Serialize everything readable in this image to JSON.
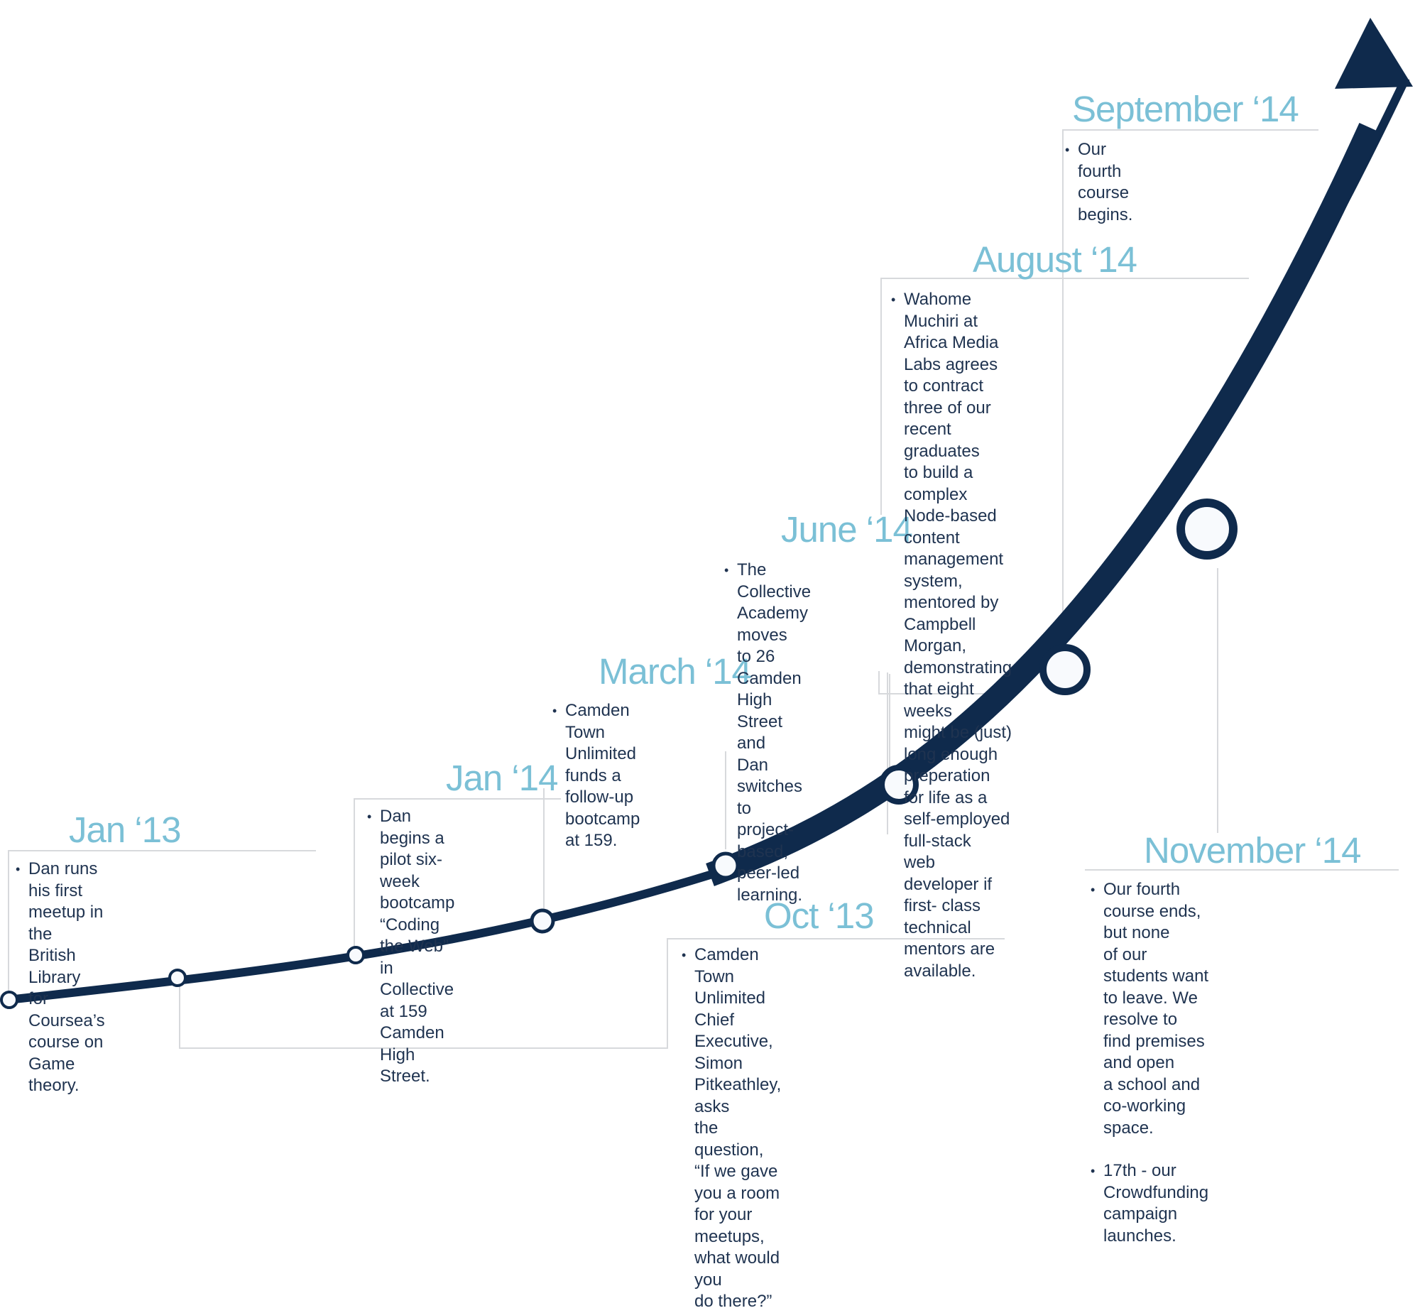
{
  "colors": {
    "curve": "#0f2a4c",
    "title": "#7bc0d6",
    "text": "#1f3350",
    "connector": "#d7d9dc"
  },
  "events": [
    {
      "title": "Jan ‘13",
      "items": [
        "Dan runs his first meetup in the\nBritish Library for Coursea’s\ncourse on Game theory."
      ]
    },
    {
      "title": "Oct ‘13",
      "items": [
        "Camden Town Unlimited Chief\nExecutive, Simon Pitkeathley, asks\nthe question, “If we gave you a room\nfor your meetups, what would you\ndo there?”"
      ]
    },
    {
      "title": "Jan ‘14",
      "items": [
        "Dan begins a pilot six-week\nbootcamp “Coding the Web”\nin Collective at 159 Camden\nHigh Street."
      ]
    },
    {
      "title": "March ‘14",
      "items": [
        "Camden Town Unlimited\nfunds a follow-up bootcamp\nat 159."
      ]
    },
    {
      "title": "June ‘14",
      "items": [
        "The Collective Academy moves\nto 26 Camden High Street and\nDan switches to project-based,\npeer-led learning."
      ]
    },
    {
      "title": "August ‘14",
      "items": [
        "Wahome Muchiri at Africa Media Labs agrees\nto contract three of our recent graduates\nto build a complex Node-based content\nmanagement system, mentored by Campbell\nMorgan, demonstrating that eight weeks\nmight be (just) long enough preperation\nfor life as a self-employed full-stack\nweb developer if first- class technical\nmentors are available."
      ]
    },
    {
      "title": "September ‘14",
      "items": [
        "Our fourth course begins."
      ]
    },
    {
      "title": "November ‘14",
      "items": [
        "Our fourth course ends, but none\nof our students want to leave. We\nresolve to find premises and open\na school and co-working space.",
        "17th - our Crowdfunding campaign\nlaunches."
      ]
    }
  ]
}
